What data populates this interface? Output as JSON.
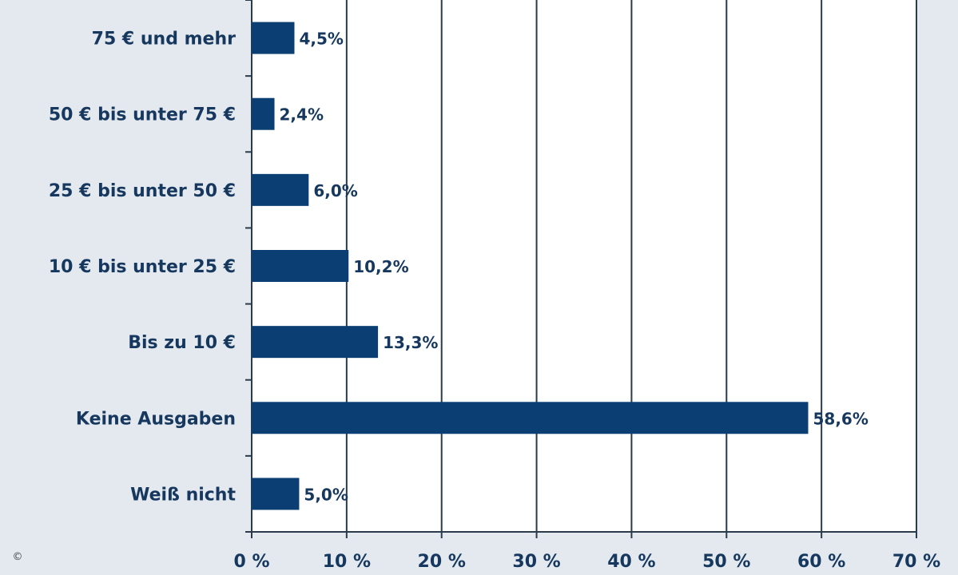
{
  "chart_data": {
    "type": "bar",
    "orientation": "horizontal",
    "categories": [
      "75 € und mehr",
      "50 € bis unter 75 €",
      "25 € bis unter 50 €",
      "10 € bis unter 25 €",
      "Bis zu 10 €",
      "Keine Ausgaben",
      "Weiß nicht"
    ],
    "values": [
      4.5,
      2.4,
      6.0,
      10.2,
      13.3,
      58.6,
      5.0
    ],
    "value_labels": [
      "4,5%",
      "2,4%",
      "6,0%",
      "10,2%",
      "13,3%",
      "58,6%",
      "5,0%"
    ],
    "xlim": [
      0,
      70
    ],
    "x_ticks": [
      0,
      10,
      20,
      30,
      40,
      50,
      60,
      70
    ],
    "x_tick_labels": [
      "0 %",
      "10 %",
      "20 %",
      "30 %",
      "40 %",
      "50 %",
      "60 %",
      "70 %"
    ],
    "grid": "vertical",
    "title": "",
    "xlabel": "",
    "ylabel": ""
  },
  "colors": {
    "bar": "#0b3f73",
    "grid": "#2a3b4c",
    "text": "#17385e",
    "background": "#e3e9ee",
    "plot_background": "#ffffff"
  },
  "footer": {
    "copyright": "©"
  }
}
